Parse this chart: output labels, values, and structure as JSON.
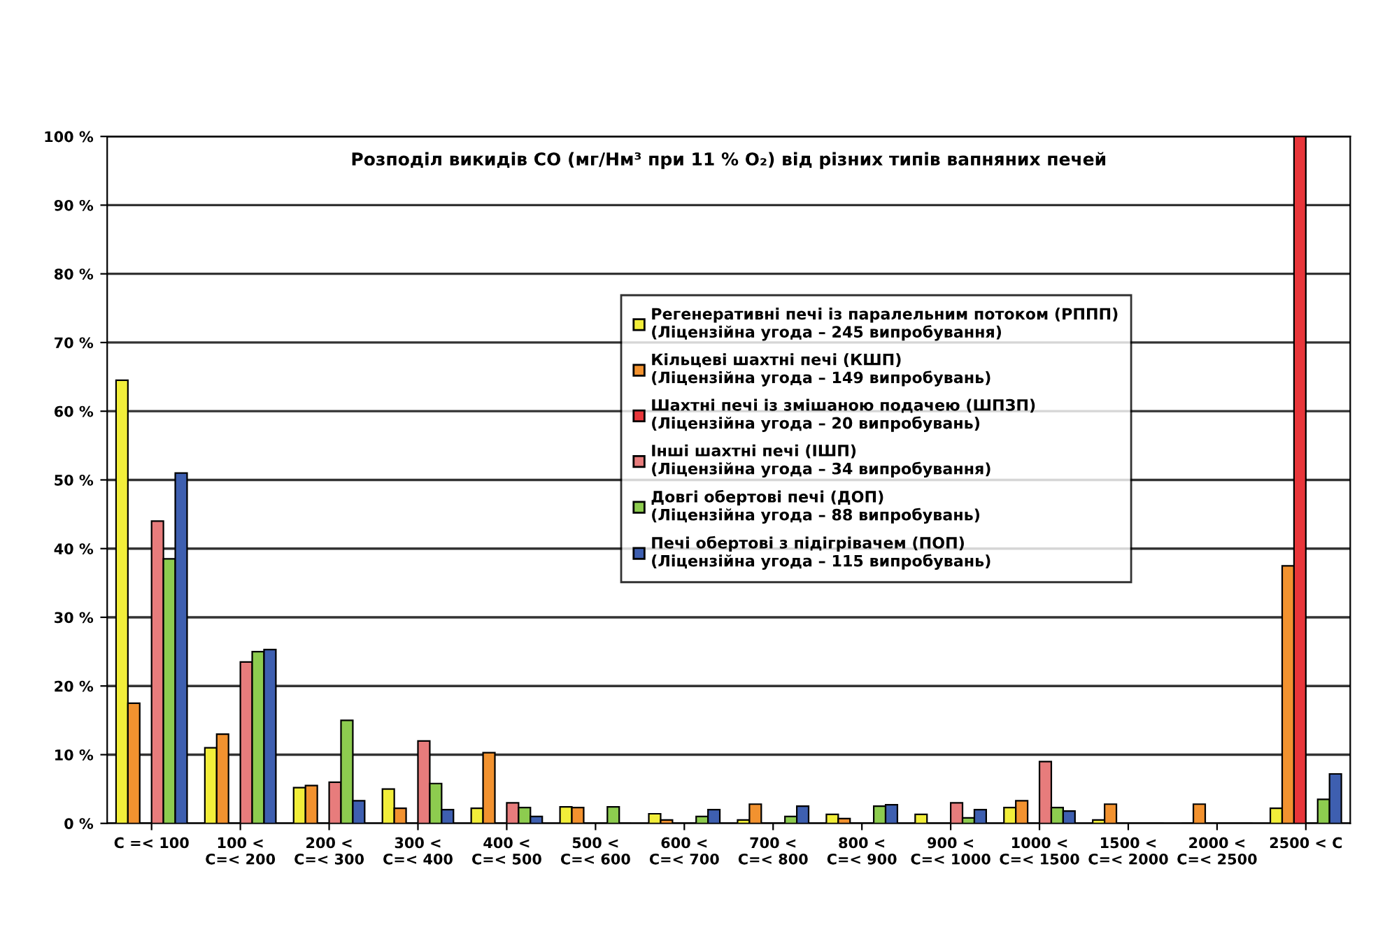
{
  "chart_data": {
    "type": "bar",
    "title": "Розподіл викидів CO (мг/Нм³ при 11 % O₂) від різних типів вапняних печей",
    "categories": [
      "C =< 100",
      "100 <\nC=< 200",
      "200 <\nC=< 300",
      "300 <\nC=< 400",
      "400 <\nC=< 500",
      "500 <\nC=< 600",
      "600 <\nC=< 700",
      "700 <\nC=< 800",
      "800 <\nC=< 900",
      "900 <\nC=< 1000",
      "1000 <\nC=< 1500",
      "1500 <\nC=< 2000",
      "2000 <\nC=< 2500",
      "2500 < C"
    ],
    "series": [
      {
        "name": "Регенеративні печі із паралельним потоком (РППП)\n(Ліцензійна угода – 245 випробування)",
        "color": "#f2ee3a",
        "values": [
          64.5,
          11,
          5.2,
          5,
          2.2,
          2.4,
          1.4,
          0.5,
          1.3,
          1.3,
          2.3,
          0.5,
          0,
          2.2
        ]
      },
      {
        "name": "Кільцеві шахтні печі (КШП)\n(Ліцензійна угода – 149 випробувань)",
        "color": "#f2922f",
        "values": [
          17.5,
          13,
          5.5,
          2.2,
          10.3,
          2.3,
          0.5,
          2.8,
          0.7,
          0,
          3.3,
          2.8,
          2.8,
          37.5
        ]
      },
      {
        "name": "Шахтні печі із змішаною подачею (ШПЗП)\n(Ліцензійна угода – 20 випробувань)",
        "color": "#e8363a",
        "values": [
          0,
          0,
          0,
          0,
          0,
          0,
          0,
          0,
          0,
          0,
          0,
          0,
          0,
          100
        ]
      },
      {
        "name": "Інші шахтні печі (ІШП)\n(Ліцензійна угода – 34 випробування)",
        "color": "#e77c7c",
        "values": [
          44,
          23.5,
          6,
          12,
          3,
          0,
          0,
          0,
          0,
          3,
          9,
          0,
          0,
          0
        ]
      },
      {
        "name": "Довгі обертові печі (ДОП)\n(Ліцензійна угода – 88 випробувань)",
        "color": "#8dcc4f",
        "values": [
          38.5,
          25,
          15,
          5.8,
          2.3,
          2.4,
          1,
          1,
          2.5,
          0.8,
          2.3,
          0,
          0,
          3.5
        ]
      },
      {
        "name": "Печі обертові з підігрівачем (ПОП)\n(Ліцензійна угода – 115 випробувань)",
        "color": "#3e5fb0",
        "values": [
          51,
          25.3,
          3.3,
          2,
          1,
          0,
          2,
          2.5,
          2.7,
          2,
          1.8,
          0,
          0,
          7.2
        ]
      }
    ],
    "ylim": [
      0,
      100
    ],
    "yticks": [
      {
        "value": 0,
        "label": "0 %"
      },
      {
        "value": 10,
        "label": "10 %"
      },
      {
        "value": 20,
        "label": "20 %"
      },
      {
        "value": 30,
        "label": "30 %"
      },
      {
        "value": 40,
        "label": "40 %"
      },
      {
        "value": 50,
        "label": "50 %"
      },
      {
        "value": 60,
        "label": "60 %"
      },
      {
        "value": 70,
        "label": "70 %"
      },
      {
        "value": 80,
        "label": "80 %"
      },
      {
        "value": 90,
        "label": "90 %"
      },
      {
        "value": 100,
        "label": "100 %"
      }
    ],
    "grid": "y",
    "legend": "right"
  }
}
